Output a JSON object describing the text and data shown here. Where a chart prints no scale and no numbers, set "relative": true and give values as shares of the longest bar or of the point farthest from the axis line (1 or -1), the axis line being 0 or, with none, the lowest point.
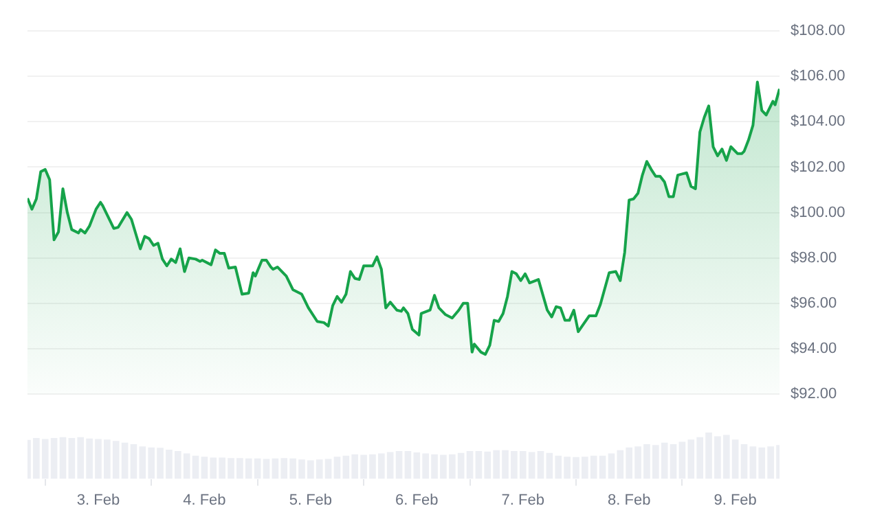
{
  "chart_data": [
    {
      "type": "area",
      "tick_labels": "y",
      "grid": "y",
      "xlim": [
        "--02-02T08:00",
        "--02-09T10:00"
      ],
      "ylim": [
        92,
        108
      ],
      "yticks": [
        {
          "value": 92,
          "label": "$92.00"
        },
        {
          "value": 94,
          "label": "$94.00"
        },
        {
          "value": 96,
          "label": "$96.00"
        },
        {
          "value": 98,
          "label": "$98.00"
        },
        {
          "value": 100,
          "label": "$100.00"
        },
        {
          "value": 102,
          "label": "$102.00"
        },
        {
          "value": 104,
          "label": "$104.00"
        },
        {
          "value": 106,
          "label": "$106.00"
        },
        {
          "value": 108,
          "label": "$108.00"
        }
      ],
      "x": [
        "--02-02T08:00",
        "--02-02T09:00",
        "--02-02T10:00",
        "--02-02T11:00",
        "--02-02T12:00",
        "--02-02T13:00",
        "--02-02T14:00",
        "--02-02T15:00",
        "--02-02T16:00",
        "--02-02T17:00",
        "--02-02T18:00",
        "--02-02T19:30",
        "--02-02T20:00",
        "--02-02T21:00",
        "--02-02T22:00",
        "--02-02T23:30",
        "--02-03T00:30",
        "--02-03T01:00",
        "--02-03T03:30",
        "--02-03T04:30",
        "--02-03T06:30",
        "--02-03T07:30",
        "--02-03T09:30",
        "--02-03T10:30",
        "--02-03T11:30",
        "--02-03T12:30",
        "--02-03T13:30",
        "--02-03T14:30",
        "--02-03T15:30",
        "--02-03T16:30",
        "--02-03T17:30",
        "--02-03T18:30",
        "--02-03T19:30",
        "--02-03T20:30",
        "--02-03T22:00",
        "--02-03T23:00",
        "--02-03T23:30",
        "--02-04T01:30",
        "--02-04T02:30",
        "--02-04T03:30",
        "--02-04T04:30",
        "--02-04T05:30",
        "--02-04T07:00",
        "--02-04T08:30",
        "--02-04T10:00",
        "--02-04T11:00",
        "--02-04T11:30",
        "--02-04T13:00",
        "--02-04T14:00",
        "--02-04T15:00",
        "--02-04T15:30",
        "--02-04T16:30",
        "--02-04T18:30",
        "--02-04T20:00",
        "--02-04T22:00",
        "--02-04T23:30",
        "--02-05T01:30",
        "--02-05T03:00",
        "--02-05T04:00",
        "--02-05T05:00",
        "--02-05T06:00",
        "--02-05T07:00",
        "--02-05T08:00",
        "--02-05T09:00",
        "--02-05T10:00",
        "--02-05T11:00",
        "--02-05T12:00",
        "--02-05T14:00",
        "--02-05T15:00",
        "--02-05T16:00",
        "--02-05T17:00",
        "--02-05T18:00",
        "--02-05T19:30",
        "--02-05T20:30",
        "--02-05T21:00",
        "--02-05T22:00",
        "--02-05T23:00",
        "--02-06T00:30",
        "--02-06T01:00",
        "--02-06T03:00",
        "--02-06T04:00",
        "--02-06T05:00",
        "--02-06T06:30",
        "--02-06T08:00",
        "--02-06T09:30",
        "--02-06T10:30",
        "--02-06T11:30",
        "--02-06T12:30",
        "--02-06T13:00",
        "--02-06T14:30",
        "--02-06T15:30",
        "--02-06T16:30",
        "--02-06T17:30",
        "--02-06T18:30",
        "--02-06T19:30",
        "--02-06T20:30",
        "--02-06T21:30",
        "--02-06T22:30",
        "--02-06T23:30",
        "--02-07T00:30",
        "--02-07T01:30",
        "--02-07T03:30",
        "--02-07T05:30",
        "--02-07T06:30",
        "--02-07T07:30",
        "--02-07T08:30",
        "--02-07T09:30",
        "--02-07T10:30",
        "--02-07T11:30",
        "--02-07T12:30",
        "--02-07T15:00",
        "--02-07T16:30",
        "--02-07T17:30",
        "--02-07T19:00",
        "--02-07T19:30",
        "--02-07T21:00",
        "--02-07T22:00",
        "--02-07T23:00",
        "--02-08T00:00",
        "--02-08T01:00",
        "--02-08T02:00",
        "--02-08T03:00",
        "--02-08T04:00",
        "--02-08T05:00",
        "--02-08T06:00",
        "--02-08T07:00",
        "--02-08T08:00",
        "--02-08T09:00",
        "--02-08T10:00",
        "--02-08T11:00",
        "--02-08T12:00",
        "--02-08T13:00",
        "--02-08T14:00",
        "--02-08T15:00",
        "--02-08T16:00",
        "--02-08T17:00",
        "--02-08T18:00",
        "--02-08T19:00",
        "--02-08T20:00",
        "--02-08T21:00",
        "--02-08T22:00",
        "--02-08T23:00",
        "--02-09T00:30",
        "--02-09T01:30",
        "--02-09T02:00",
        "--02-09T03:00",
        "--02-09T04:00",
        "--02-09T05:00",
        "--02-09T06:00",
        "--02-09T07:00",
        "--02-09T08:30",
        "--02-09T09:00",
        "--02-09T10:00"
      ],
      "series": [
        {
          "color": "#16a34a",
          "values": [
            100.63,
            100.15,
            100.6,
            101.8,
            101.9,
            101.45,
            98.8,
            99.15,
            101.05,
            100.0,
            99.25,
            99.1,
            99.25,
            99.1,
            99.4,
            100.15,
            100.45,
            100.3,
            99.3,
            99.35,
            100.0,
            99.7,
            98.4,
            98.95,
            98.85,
            98.55,
            98.65,
            97.95,
            97.65,
            97.95,
            97.8,
            98.4,
            97.4,
            98.0,
            97.95,
            97.85,
            97.9,
            97.7,
            98.35,
            98.2,
            98.2,
            97.55,
            97.6,
            96.4,
            96.45,
            97.35,
            97.2,
            97.9,
            97.9,
            97.6,
            97.5,
            97.6,
            97.2,
            96.6,
            96.4,
            95.8,
            95.2,
            95.15,
            95.0,
            95.9,
            96.3,
            96.05,
            96.4,
            97.4,
            97.1,
            97.05,
            97.65,
            97.65,
            98.05,
            97.5,
            95.8,
            96.05,
            95.7,
            95.65,
            95.8,
            95.55,
            94.85,
            94.6,
            95.55,
            95.7,
            96.35,
            95.8,
            95.5,
            95.35,
            95.7,
            96.0,
            96.0,
            93.85,
            94.2,
            93.85,
            93.75,
            94.15,
            95.25,
            95.2,
            95.55,
            96.3,
            97.4,
            97.3,
            97.0,
            97.3,
            96.9,
            97.05,
            95.7,
            95.4,
            95.85,
            95.8,
            95.25,
            95.25,
            95.7,
            94.75,
            95.45,
            95.45,
            95.95,
            97.0,
            97.35,
            97.4,
            97.0,
            98.25,
            100.55,
            100.6,
            100.85,
            101.65,
            102.25,
            101.9,
            101.6,
            101.6,
            101.35,
            100.7,
            100.7,
            101.65,
            101.7,
            101.75,
            101.15,
            101.05,
            103.55,
            104.2,
            104.7,
            102.9,
            102.5,
            102.8,
            102.3,
            102.9,
            102.6,
            102.6,
            102.7,
            103.2,
            103.85,
            105.75,
            104.5,
            104.3,
            104.9,
            104.75,
            105.45
          ]
        }
      ]
    },
    {
      "type": "bar",
      "relative": true,
      "tick_labels": "x",
      "xlim": [
        "--02-02T08:00",
        "--02-09T10:00"
      ],
      "xticks": [
        {
          "value": "--02-03",
          "label": "3. Feb"
        },
        {
          "value": "--02-04",
          "label": "4. Feb"
        },
        {
          "value": "--02-05",
          "label": "5. Feb"
        },
        {
          "value": "--02-06",
          "label": "6. Feb"
        },
        {
          "value": "--02-07",
          "label": "7. Feb"
        },
        {
          "value": "--02-08",
          "label": "8. Feb"
        },
        {
          "value": "--02-09",
          "label": "9. Feb"
        }
      ],
      "x": [
        "--02-02T08:00",
        "--02-02T10:00",
        "--02-02T12:00",
        "--02-02T14:00",
        "--02-02T16:00",
        "--02-02T18:00",
        "--02-02T20:00",
        "--02-02T22:00",
        "--02-03T00:00",
        "--02-03T02:00",
        "--02-03T04:00",
        "--02-03T06:00",
        "--02-03T08:00",
        "--02-03T10:00",
        "--02-03T12:00",
        "--02-03T14:00",
        "--02-03T16:00",
        "--02-03T18:00",
        "--02-03T20:00",
        "--02-03T22:00",
        "--02-04T00:00",
        "--02-04T02:00",
        "--02-04T04:00",
        "--02-04T06:00",
        "--02-04T08:00",
        "--02-04T10:00",
        "--02-04T12:00",
        "--02-04T14:00",
        "--02-04T16:00",
        "--02-04T18:00",
        "--02-04T20:00",
        "--02-04T22:00",
        "--02-05T00:00",
        "--02-05T02:00",
        "--02-05T04:00",
        "--02-05T06:00",
        "--02-05T08:00",
        "--02-05T10:00",
        "--02-05T12:00",
        "--02-05T14:00",
        "--02-05T16:00",
        "--02-05T18:00",
        "--02-05T20:00",
        "--02-05T22:00",
        "--02-06T00:00",
        "--02-06T02:00",
        "--02-06T04:00",
        "--02-06T06:00",
        "--02-06T08:00",
        "--02-06T10:00",
        "--02-06T12:00",
        "--02-06T14:00",
        "--02-06T16:00",
        "--02-06T18:00",
        "--02-06T20:00",
        "--02-06T22:00",
        "--02-07T00:00",
        "--02-07T02:00",
        "--02-07T04:00",
        "--02-07T06:00",
        "--02-07T08:00",
        "--02-07T10:00",
        "--02-07T12:00",
        "--02-07T14:00",
        "--02-07T16:00",
        "--02-07T18:00",
        "--02-07T20:00",
        "--02-07T22:00",
        "--02-08T00:00",
        "--02-08T02:00",
        "--02-08T04:00",
        "--02-08T06:00",
        "--02-08T08:00",
        "--02-08T10:00",
        "--02-08T12:00",
        "--02-08T14:00",
        "--02-08T16:00",
        "--02-08T18:00",
        "--02-08T20:00",
        "--02-08T22:00",
        "--02-09T00:00",
        "--02-09T02:00",
        "--02-09T04:00",
        "--02-09T06:00",
        "--02-09T08:00",
        "--02-09T10:00"
      ],
      "series": [
        {
          "color": "#eceef3",
          "values": [
            0.84,
            0.88,
            0.86,
            0.88,
            0.9,
            0.88,
            0.9,
            0.87,
            0.86,
            0.85,
            0.82,
            0.78,
            0.75,
            0.7,
            0.68,
            0.67,
            0.63,
            0.6,
            0.55,
            0.5,
            0.48,
            0.46,
            0.46,
            0.45,
            0.45,
            0.44,
            0.44,
            0.43,
            0.44,
            0.45,
            0.44,
            0.42,
            0.4,
            0.42,
            0.43,
            0.48,
            0.5,
            0.53,
            0.52,
            0.53,
            0.55,
            0.58,
            0.6,
            0.6,
            0.57,
            0.55,
            0.53,
            0.52,
            0.53,
            0.56,
            0.6,
            0.6,
            0.59,
            0.62,
            0.62,
            0.6,
            0.6,
            0.58,
            0.6,
            0.56,
            0.5,
            0.48,
            0.47,
            0.48,
            0.5,
            0.5,
            0.55,
            0.62,
            0.68,
            0.7,
            0.75,
            0.73,
            0.78,
            0.75,
            0.8,
            0.85,
            0.9,
            1.0,
            0.92,
            0.95,
            0.85,
            0.75,
            0.7,
            0.68,
            0.7,
            0.73
          ]
        }
      ]
    }
  ]
}
